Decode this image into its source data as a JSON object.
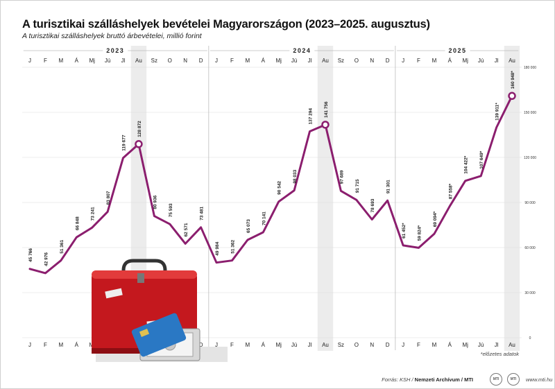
{
  "title": "A turisztikai szálláshelyek bevételei Magyarországon (2023–2025. augusztus)",
  "subtitle": "A turisztikai szálláshelyek bruttó árbevételei, millió forint",
  "footnote": "*előzetes adatok",
  "source_label": "Forrás: KSH /",
  "source_bold": "Nemzeti Archívum / MTI",
  "website": "www.mti.hu",
  "logo_text": "MTI",
  "colors": {
    "line": "#8b1e6e",
    "highlight": "#ececec",
    "grid": "#d9d9d9"
  },
  "chart_data": {
    "type": "line",
    "title": "A turisztikai szálláshelyek bevételei Magyarországon (2023–2025. augusztus)",
    "subtitle": "A turisztikai szálláshelyek bruttó árbevételei, millió forint",
    "years": [
      "2023",
      "2024",
      "2025"
    ],
    "months": [
      "J",
      "F",
      "M",
      "Á",
      "Mj",
      "Jú",
      "Jl",
      "Au",
      "Sz",
      "O",
      "N",
      "D",
      "J",
      "F",
      "M",
      "Á",
      "Mj",
      "Jú",
      "Jl",
      "Au",
      "Sz",
      "O",
      "N",
      "D",
      "J",
      "F",
      "M",
      "Á",
      "Mj",
      "Jú",
      "Jl",
      "Au"
    ],
    "values": [
      45766,
      42976,
      51361,
      66848,
      73241,
      83807,
      119677,
      128872,
      80936,
      75593,
      62571,
      73481,
      49984,
      51362,
      65073,
      70141,
      90542,
      98033,
      137294,
      141756,
      97689,
      91715,
      78693,
      91301,
      61452,
      59824,
      69094,
      87558,
      104422,
      107649,
      139911,
      160948
    ],
    "labels": [
      "45 766",
      "42 976",
      "51 361",
      "66 848",
      "73 241",
      "83 807",
      "119 677",
      "128 872",
      "80 936",
      "75 593",
      "62 571",
      "73 481",
      "49 984",
      "51 362",
      "65 073",
      "70 141",
      "90 542",
      "98 033",
      "137 294",
      "141 756",
      "97 689",
      "91 715",
      "78 693",
      "91 301",
      "61 452*",
      "59 824*",
      "69 094*",
      "87 558*",
      "104 422*",
      "107 649*",
      "139 911*",
      "160 948*"
    ],
    "highlighted_points": [
      7,
      19,
      31
    ],
    "ylim": [
      0,
      180000
    ],
    "y_ticks": [
      0,
      30000,
      60000,
      90000,
      120000,
      150000,
      180000
    ],
    "y_tick_labels": [
      "0",
      "30 000",
      "60 000",
      "90 000",
      "120 000",
      "150 000",
      "180 000"
    ],
    "ylabel_position": "right",
    "grid": true
  }
}
